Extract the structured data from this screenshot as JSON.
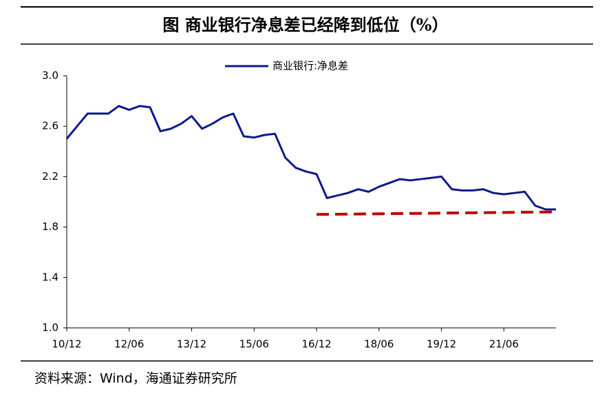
{
  "chart_data": {
    "type": "line",
    "title": "图  商业银行净息差已经降到低位（%）",
    "source": "资料来源：Wind，海通证券研究所",
    "categories": [
      "10/12",
      null,
      null,
      null,
      null,
      null,
      "12/06",
      null,
      null,
      null,
      null,
      null,
      "13/12",
      null,
      null,
      null,
      null,
      null,
      "15/06",
      null,
      null,
      null,
      null,
      null,
      "16/12",
      null,
      null,
      null,
      null,
      null,
      "18/06",
      null,
      null,
      null,
      null,
      null,
      "19/12",
      null,
      null,
      null,
      null,
      null,
      "21/06",
      null,
      null,
      null,
      null,
      null
    ],
    "series": [
      {
        "name": "商业银行:净息差",
        "color": "#0b1a8c",
        "values": [
          2.5,
          2.6,
          2.7,
          2.7,
          2.7,
          2.76,
          2.73,
          2.76,
          2.75,
          2.56,
          2.58,
          2.62,
          2.68,
          2.58,
          2.62,
          2.67,
          2.7,
          2.52,
          2.51,
          2.53,
          2.54,
          2.35,
          2.27,
          2.24,
          2.22,
          2.03,
          2.05,
          2.07,
          2.1,
          2.08,
          2.12,
          2.15,
          2.18,
          2.17,
          2.18,
          2.19,
          2.2,
          2.1,
          2.09,
          2.09,
          2.1,
          2.07,
          2.06,
          2.07,
          2.08,
          1.97,
          1.94,
          1.94
        ]
      }
    ],
    "reference_line": {
      "color": "#c00000",
      "dashed": true,
      "values": [
        null,
        null,
        null,
        null,
        null,
        null,
        null,
        null,
        null,
        null,
        null,
        null,
        null,
        null,
        null,
        null,
        null,
        null,
        null,
        null,
        null,
        null,
        null,
        null,
        1.9,
        null,
        null,
        null,
        null,
        null,
        null,
        null,
        null,
        null,
        null,
        null,
        null,
        null,
        null,
        null,
        null,
        null,
        null,
        null,
        null,
        null,
        null,
        1.92
      ]
    },
    "ylim": [
      1.0,
      3.0
    ],
    "yticks": [
      {
        "value": 1.0,
        "label": "1.0"
      },
      1.4,
      1.8,
      2.2,
      2.6,
      {
        "value": 3.0,
        "label": "3.0"
      }
    ],
    "legend": "top"
  }
}
